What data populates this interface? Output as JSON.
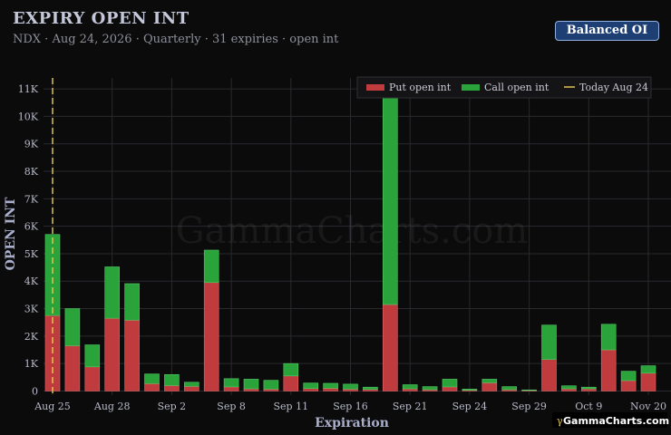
{
  "header": {
    "title": "EXPIRY OPEN INT",
    "subtitle": "NDX · Aug 24, 2026 · Quarterly · 31 expiries · open int",
    "toggle_label": "Balanced OI"
  },
  "watermark": "GammaCharts.com",
  "brand": "GammaCharts.com",
  "colors": {
    "put": "#c03b3e",
    "call": "#2aa33a",
    "today": "#e0c44a",
    "background": "#0b0b0c",
    "grid": "#2a2a2e"
  },
  "chart_data": {
    "type": "bar",
    "stacked": true,
    "xlabel": "Expiration",
    "ylabel": "OPEN INT",
    "ylim": [
      -150,
      11400
    ],
    "y_ticks": [
      {
        "v": 0,
        "label": "0"
      },
      {
        "v": 1000,
        "label": "1K"
      },
      {
        "v": 2000,
        "label": "2K"
      },
      {
        "v": 3000,
        "label": "3K"
      },
      {
        "v": 4000,
        "label": "4K"
      },
      {
        "v": 5000,
        "label": "5K"
      },
      {
        "v": 6000,
        "label": "6K"
      },
      {
        "v": 7000,
        "label": "7K"
      },
      {
        "v": 8000,
        "label": "8K"
      },
      {
        "v": 9000,
        "label": "9K"
      },
      {
        "v": 10000,
        "label": "10K"
      },
      {
        "v": 11000,
        "label": "11K"
      }
    ],
    "x_tick_labels": [
      {
        "i": 0,
        "label": "Aug 25"
      },
      {
        "i": 3,
        "label": "Aug 28"
      },
      {
        "i": 6,
        "label": "Sep 2"
      },
      {
        "i": 9,
        "label": "Sep 8"
      },
      {
        "i": 12,
        "label": "Sep 11"
      },
      {
        "i": 15,
        "label": "Sep 16"
      },
      {
        "i": 18,
        "label": "Sep 21"
      },
      {
        "i": 21,
        "label": "Sep 24"
      },
      {
        "i": 24,
        "label": "Sep 29"
      },
      {
        "i": 27,
        "label": "Oct 9"
      },
      {
        "i": 30,
        "label": "Nov 20"
      }
    ],
    "series": [
      {
        "name": "Put open int",
        "values": [
          2750,
          1650,
          880,
          2650,
          2580,
          270,
          200,
          170,
          3950,
          150,
          80,
          70,
          550,
          90,
          100,
          70,
          60,
          3150,
          80,
          50,
          150,
          30,
          300,
          50,
          20,
          1150,
          80,
          80,
          1500,
          380,
          650
        ]
      },
      {
        "name": "Call open int",
        "values": [
          2950,
          1350,
          800,
          1870,
          1330,
          350,
          400,
          150,
          1180,
          300,
          350,
          320,
          450,
          200,
          180,
          180,
          80,
          7900,
          150,
          110,
          280,
          40,
          130,
          110,
          20,
          1250,
          110,
          60,
          930,
          340,
          270
        ]
      }
    ],
    "today_marker": {
      "label": "Today Aug 24"
    },
    "legend": {
      "placement": "top-right"
    }
  }
}
